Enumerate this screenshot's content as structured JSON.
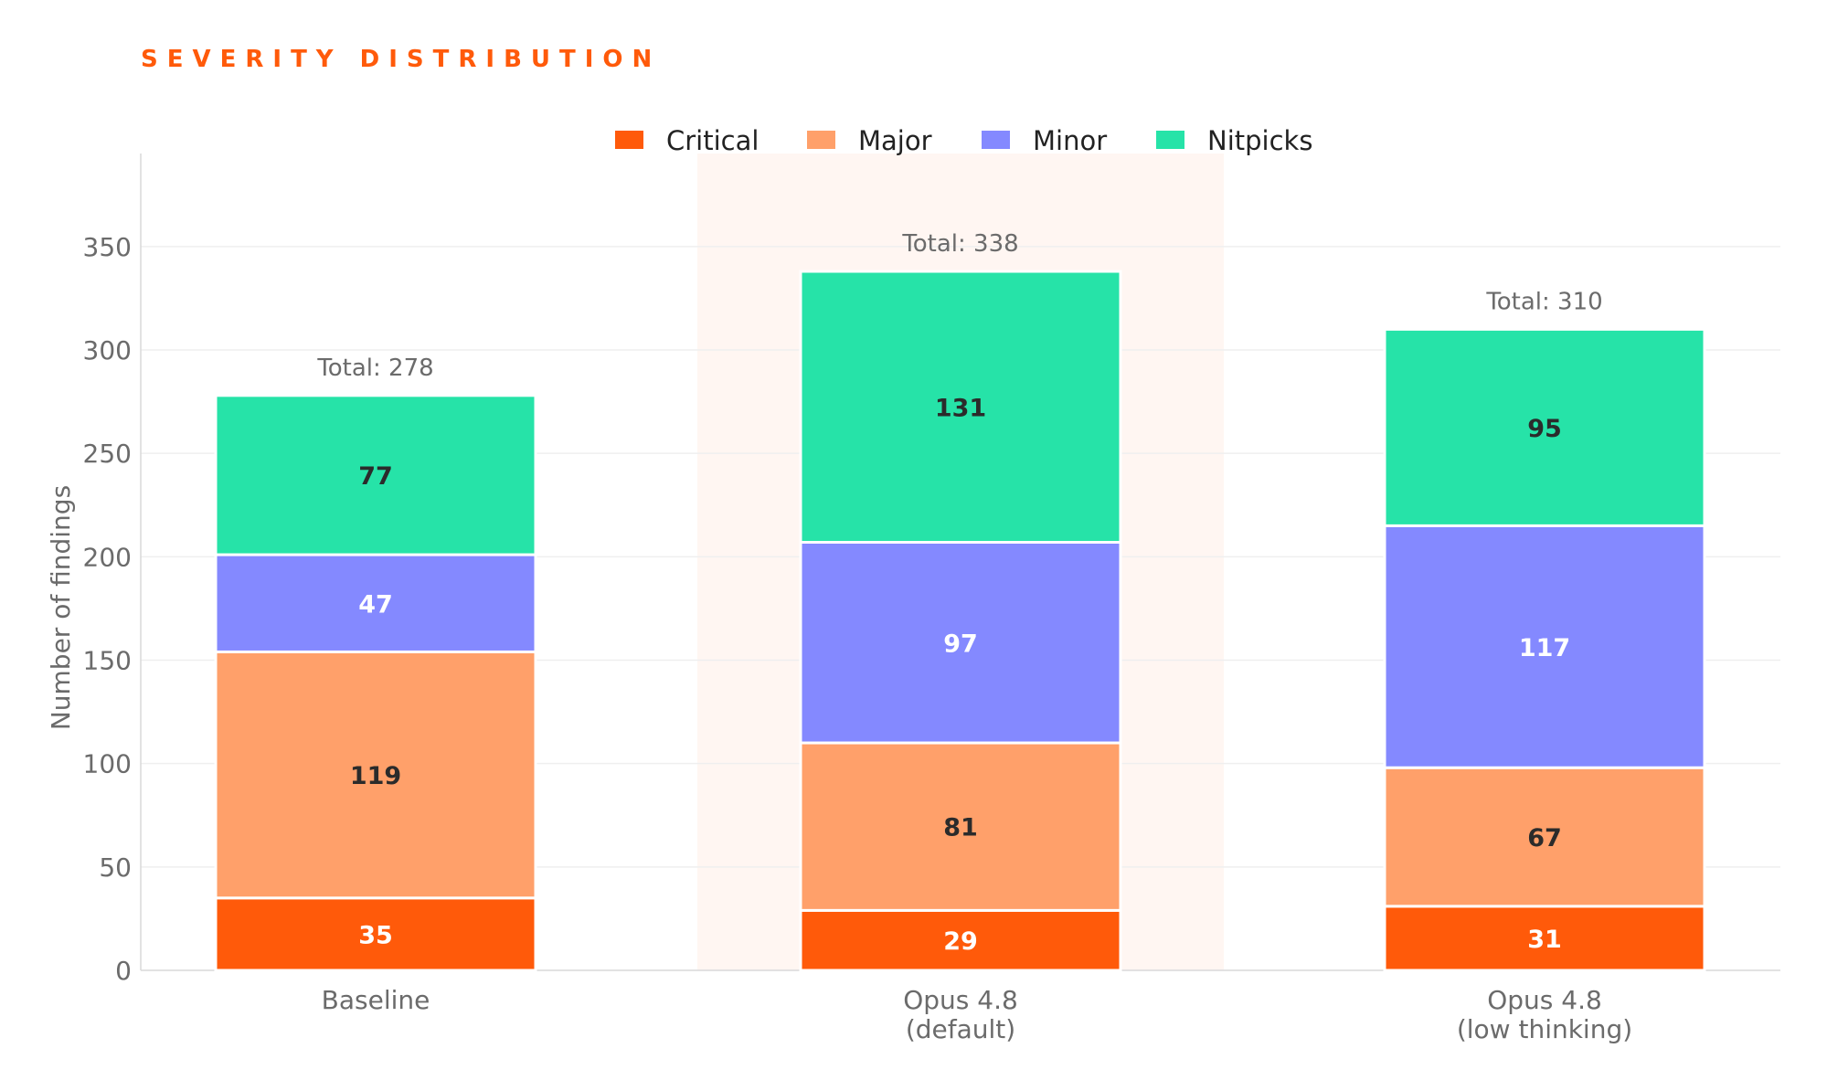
{
  "chart_data": {
    "type": "bar",
    "stacked": true,
    "title": "SEVERITY DISTRIBUTION",
    "ylabel": "Number of findings",
    "xlabel": "",
    "ylim": [
      0,
      395
    ],
    "yticks": [
      0,
      50,
      100,
      150,
      200,
      250,
      300,
      350
    ],
    "grid": true,
    "legend_position": "top-center",
    "highlighted_category_index": 1,
    "categories": [
      [
        "Baseline"
      ],
      [
        "Opus 4.8",
        "(default)"
      ],
      [
        "Opus 4.8",
        "(low thinking)"
      ]
    ],
    "totals_prefix": "Total: ",
    "totals": [
      278,
      338,
      310
    ],
    "series": [
      {
        "name": "Critical",
        "color": "#FF5A0A",
        "label_color": "#ffffff",
        "values": [
          35,
          29,
          31
        ]
      },
      {
        "name": "Major",
        "color": "#FFA06A",
        "label_color": "#2b2b2b",
        "values": [
          119,
          81,
          67
        ]
      },
      {
        "name": "Minor",
        "color": "#8489FF",
        "label_color": "#ffffff",
        "values": [
          47,
          97,
          117
        ]
      },
      {
        "name": "Nitpicks",
        "color": "#26E3A8",
        "label_color": "#2b2b2b",
        "values": [
          77,
          131,
          95
        ]
      }
    ],
    "colors": {
      "highlight_band": "#FFF6F2",
      "grid": "#EFEFEF",
      "axis": "#D9D9D9"
    }
  }
}
